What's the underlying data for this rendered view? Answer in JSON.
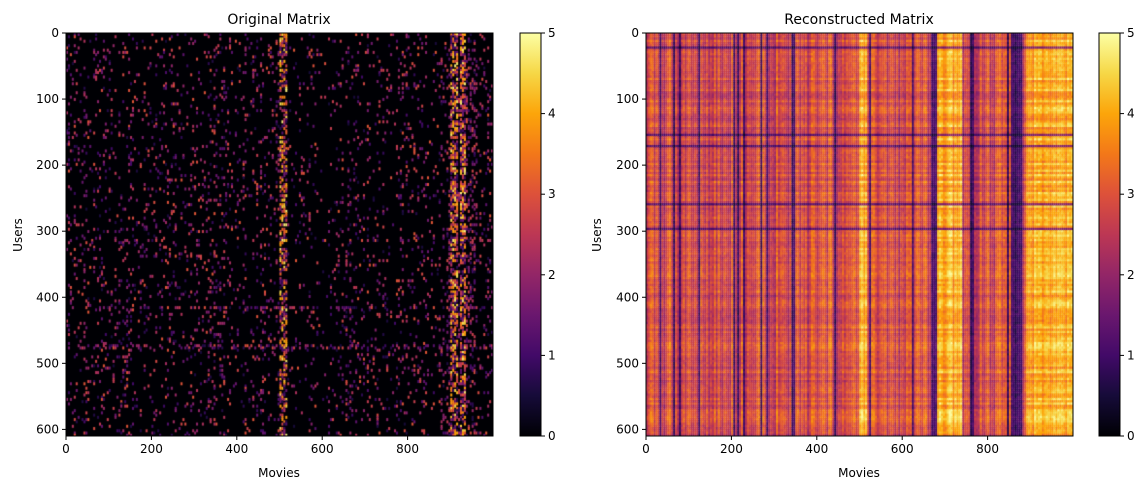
{
  "chart_data": [
    {
      "type": "heatmap",
      "title": "Original Matrix",
      "xlabel": "Movies",
      "ylabel": "Users",
      "xlim": [
        0,
        1000
      ],
      "ylim": [
        610,
        0
      ],
      "xticks": [
        0,
        200,
        400,
        600,
        800
      ],
      "yticks": [
        0,
        100,
        200,
        300,
        400,
        500,
        600
      ],
      "colormap": "inferno",
      "colorbar": {
        "min": 0,
        "max": 5,
        "ticks": [
          0,
          1,
          2,
          3,
          4,
          5
        ]
      },
      "description_values": {
        "sparsity": "mostly zero with sparse ratings",
        "bright_columns_x": [
          510,
          910,
          930
        ],
        "bright_rows_y": [
          415,
          475
        ]
      }
    },
    {
      "type": "heatmap",
      "title": "Reconstructed Matrix",
      "xlabel": "Movies",
      "ylabel": "Users",
      "xlim": [
        0,
        1000
      ],
      "ylim": [
        610,
        0
      ],
      "xticks": [
        0,
        200,
        400,
        600,
        800
      ],
      "yticks": [
        0,
        100,
        200,
        300,
        400,
        500,
        600
      ],
      "colormap": "inferno",
      "colorbar": {
        "min": 0,
        "max": 5,
        "ticks": [
          0,
          1,
          2,
          3,
          4,
          5
        ]
      },
      "description_values": {
        "bright_bands_x": [
          [
            500,
            520
          ],
          [
            680,
            740
          ],
          [
            890,
            1000
          ]
        ],
        "dark_bands_x": [
          [
            340,
            350
          ],
          [
            670,
            680
          ],
          [
            760,
            770
          ],
          [
            860,
            880
          ]
        ]
      }
    }
  ]
}
